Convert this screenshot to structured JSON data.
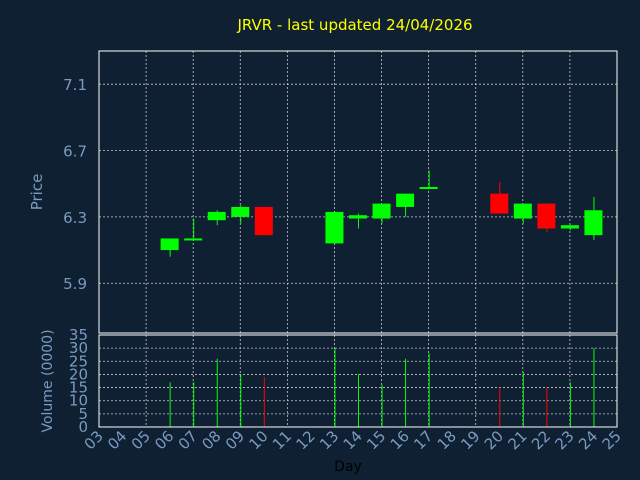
{
  "colors": {
    "background": "#0f2033",
    "axis_text": "#7a9bbf",
    "title": "#ffff00",
    "up": "#00ff00",
    "down": "#ff0000",
    "grid": "#c8c8c8"
  },
  "chart_data": {
    "type": "candlestick",
    "title": "JRVR - last updated 24/04/2026",
    "xlabel": "Day",
    "ylabel": "Price",
    "volume_label": "Volume (0000)",
    "days": [
      "03",
      "04",
      "05",
      "06",
      "07",
      "08",
      "09",
      "10",
      "11",
      "12",
      "13",
      "14",
      "15",
      "16",
      "17",
      "18",
      "19",
      "20",
      "21",
      "22",
      "23",
      "24",
      "25"
    ],
    "price_ylim": [
      5.6,
      7.3
    ],
    "price_ticks": [
      "5.9",
      "6.3",
      "6.7",
      "7.1"
    ],
    "volume_ylim": [
      0,
      35
    ],
    "volume_ticks": [
      "0",
      "5",
      "10",
      "15",
      "20",
      "25",
      "30",
      "35"
    ],
    "grid": true,
    "candles": [
      {
        "day": "06",
        "open": 6.1,
        "high": 6.17,
        "low": 6.06,
        "close": 6.17
      },
      {
        "day": "07",
        "open": 6.16,
        "high": 6.29,
        "low": 6.16,
        "close": 6.17
      },
      {
        "day": "08",
        "open": 6.28,
        "high": 6.34,
        "low": 6.25,
        "close": 6.33
      },
      {
        "day": "09",
        "open": 6.3,
        "high": 6.37,
        "low": 6.26,
        "close": 6.36
      },
      {
        "day": "10",
        "open": 6.36,
        "high": 6.36,
        "low": 6.19,
        "close": 6.19
      },
      {
        "day": "13",
        "open": 6.14,
        "high": 6.33,
        "low": 6.14,
        "close": 6.33
      },
      {
        "day": "14",
        "open": 6.29,
        "high": 6.32,
        "low": 6.23,
        "close": 6.31
      },
      {
        "day": "15",
        "open": 6.29,
        "high": 6.38,
        "low": 6.26,
        "close": 6.38
      },
      {
        "day": "16",
        "open": 6.36,
        "high": 6.44,
        "low": 6.3,
        "close": 6.44
      },
      {
        "day": "17",
        "open": 6.47,
        "high": 6.58,
        "low": 6.47,
        "close": 6.48
      },
      {
        "day": "20",
        "open": 6.44,
        "high": 6.51,
        "low": 6.32,
        "close": 6.32
      },
      {
        "day": "21",
        "open": 6.29,
        "high": 6.38,
        "low": 6.26,
        "close": 6.38
      },
      {
        "day": "22",
        "open": 6.38,
        "high": 6.38,
        "low": 6.21,
        "close": 6.23
      },
      {
        "day": "23",
        "open": 6.23,
        "high": 6.25,
        "low": 6.22,
        "close": 6.25
      },
      {
        "day": "24",
        "open": 6.19,
        "high": 6.42,
        "low": 6.16,
        "close": 6.34
      }
    ],
    "volume": [
      {
        "day": "06",
        "value": 17,
        "dir": "up"
      },
      {
        "day": "07",
        "value": 17,
        "dir": "up"
      },
      {
        "day": "08",
        "value": 26,
        "dir": "up"
      },
      {
        "day": "09",
        "value": 20,
        "dir": "up"
      },
      {
        "day": "10",
        "value": 19,
        "dir": "down"
      },
      {
        "day": "13",
        "value": 30,
        "dir": "up"
      },
      {
        "day": "14",
        "value": 20,
        "dir": "up"
      },
      {
        "day": "15",
        "value": 16,
        "dir": "up"
      },
      {
        "day": "16",
        "value": 26,
        "dir": "up"
      },
      {
        "day": "17",
        "value": 28,
        "dir": "up"
      },
      {
        "day": "20",
        "value": 15,
        "dir": "down"
      },
      {
        "day": "21",
        "value": 21,
        "dir": "up"
      },
      {
        "day": "22",
        "value": 15,
        "dir": "down"
      },
      {
        "day": "23",
        "value": 17,
        "dir": "up"
      },
      {
        "day": "24",
        "value": 30,
        "dir": "up"
      }
    ]
  }
}
